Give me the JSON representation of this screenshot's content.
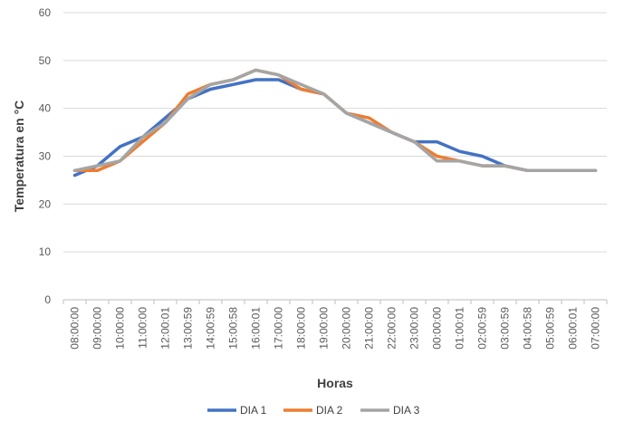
{
  "chart_data": {
    "type": "line",
    "title": "",
    "xlabel": "Horas",
    "ylabel": "Temperatura en °C",
    "ylim": [
      0,
      60
    ],
    "yticks": [
      0,
      10,
      20,
      30,
      40,
      50,
      60
    ],
    "grid": true,
    "legend_position": "bottom",
    "categories": [
      "08:00:00",
      "09:00:00",
      "10:00:00",
      "11:00:00",
      "12:00:01",
      "13:00:59",
      "14:00:59",
      "15:00:58",
      "16:00:01",
      "17:00:00",
      "18:00:00",
      "19:00:00",
      "20:00:00",
      "21:00:00",
      "22:00:00",
      "23:00:00",
      "00:00:00",
      "01:00:01",
      "02:00:59",
      "03:00:59",
      "04:00:58",
      "05:00:59",
      "06:00:01",
      "07:00:00"
    ],
    "series": [
      {
        "name": "DIA 1",
        "color": "#4472C4",
        "values": [
          26,
          28,
          32,
          34,
          38,
          42,
          44,
          45,
          46,
          46,
          44,
          43,
          39,
          37,
          35,
          33,
          33,
          31,
          30,
          28,
          27,
          27,
          27,
          27
        ]
      },
      {
        "name": "DIA 2",
        "color": "#ED7D31",
        "values": [
          27,
          27,
          29,
          33,
          37,
          43,
          45,
          46,
          48,
          47,
          44,
          43,
          39,
          38,
          35,
          33,
          30,
          29,
          28,
          28,
          27,
          27,
          27,
          27
        ]
      },
      {
        "name": "DIA 3",
        "color": "#A5A5A5",
        "values": [
          27,
          28,
          29,
          34,
          37,
          42,
          45,
          46,
          48,
          47,
          45,
          43,
          39,
          37,
          35,
          33,
          29,
          29,
          28,
          28,
          27,
          27,
          27,
          27
        ]
      }
    ]
  }
}
